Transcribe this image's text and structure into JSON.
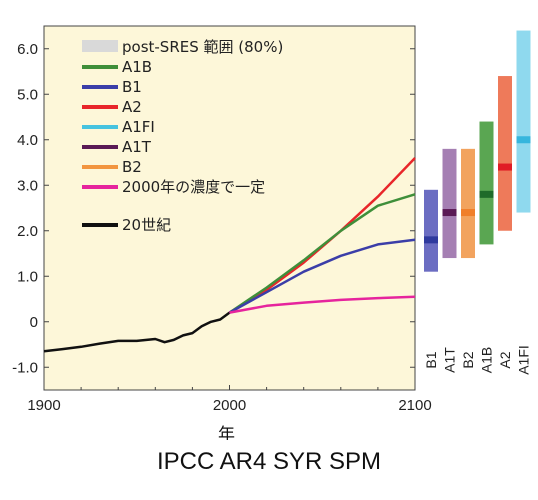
{
  "chart_data": {
    "type": "line",
    "xlabel": "年",
    "ylabel": "",
    "xlim": [
      1900,
      2100
    ],
    "ylim": [
      -1.5,
      6.5
    ],
    "x_ticks": [
      1900,
      2000,
      2100
    ],
    "y_ticks": [
      -1.0,
      0,
      1.0,
      2.0,
      3.0,
      4.0,
      5.0,
      6.0
    ],
    "y_tick_labels": [
      "-1.0",
      "0",
      "1.0",
      "2.0",
      "3.0",
      "4.0",
      "5.0",
      "6.0"
    ],
    "plot_background": "#fdf7d9",
    "legend_position": "top-left",
    "legend": [
      {
        "label": "post-SRES 範囲 (80%)",
        "color": "#d9d9d9",
        "kind": "patch"
      },
      {
        "label": "A1B",
        "color": "#3f8f3a",
        "kind": "line"
      },
      {
        "label": "B1",
        "color": "#3b3ea8",
        "kind": "line"
      },
      {
        "label": "A2",
        "color": "#e8262a",
        "kind": "line"
      },
      {
        "label": "A1FI",
        "color": "#46c3df",
        "kind": "line"
      },
      {
        "label": "A1T",
        "color": "#5a1a55",
        "kind": "line"
      },
      {
        "label": "B2",
        "color": "#f2953f",
        "kind": "line"
      },
      {
        "label": "2000年の濃度で一定",
        "color": "#e6249d",
        "kind": "line"
      },
      {
        "label": "20世紀",
        "color": "#111111",
        "kind": "line"
      }
    ],
    "series": [
      {
        "name": "20世紀",
        "color": "#111111",
        "x": [
          1900,
          1910,
          1920,
          1930,
          1940,
          1950,
          1960,
          1965,
          1970,
          1975,
          1980,
          1985,
          1990,
          1995,
          2000
        ],
        "y": [
          -0.65,
          -0.6,
          -0.55,
          -0.48,
          -0.42,
          -0.42,
          -0.38,
          -0.45,
          -0.4,
          -0.3,
          -0.25,
          -0.1,
          0.0,
          0.05,
          0.2
        ]
      },
      {
        "name": "A2",
        "color": "#e8262a",
        "x": [
          2000,
          2020,
          2040,
          2060,
          2080,
          2100
        ],
        "y": [
          0.2,
          0.7,
          1.3,
          2.0,
          2.75,
          3.6
        ]
      },
      {
        "name": "A1B",
        "color": "#3f8f3a",
        "x": [
          2000,
          2020,
          2040,
          2060,
          2080,
          2100
        ],
        "y": [
          0.2,
          0.75,
          1.35,
          2.0,
          2.55,
          2.8
        ]
      },
      {
        "name": "B1",
        "color": "#3b3ea8",
        "x": [
          2000,
          2020,
          2040,
          2060,
          2080,
          2100
        ],
        "y": [
          0.2,
          0.65,
          1.1,
          1.45,
          1.7,
          1.8
        ]
      },
      {
        "name": "2000年の濃度で一定",
        "color": "#e6249d",
        "x": [
          2000,
          2020,
          2040,
          2060,
          2080,
          2100
        ],
        "y": [
          0.2,
          0.35,
          0.42,
          0.48,
          0.52,
          0.55
        ]
      }
    ],
    "range_bars": [
      {
        "label": "B1",
        "color": "#6b6dc2",
        "low": 1.1,
        "high": 2.9,
        "best": 1.8
      },
      {
        "label": "A1T",
        "color": "#a57fb3",
        "low": 1.4,
        "high": 3.8,
        "best": 2.4
      },
      {
        "label": "B2",
        "color": "#f2a35e",
        "low": 1.4,
        "high": 3.8,
        "best": 2.4
      },
      {
        "label": "A1B",
        "color": "#5aa652",
        "low": 1.7,
        "high": 4.4,
        "best": 2.8
      },
      {
        "label": "A2",
        "color": "#ee7a5a",
        "low": 2.0,
        "high": 5.4,
        "best": 3.4
      },
      {
        "label": "A1FI",
        "color": "#8fd9ee",
        "low": 2.4,
        "high": 6.4,
        "best": 4.0
      }
    ],
    "range_best_colors": {
      "B1": "#2f3a9e",
      "A1T": "#5a1a55",
      "B2": "#f07f2a",
      "A1B": "#1f6b2a",
      "A2": "#e01b25",
      "A1FI": "#36b6dd"
    }
  },
  "caption": "IPCC AR4 SYR SPM"
}
